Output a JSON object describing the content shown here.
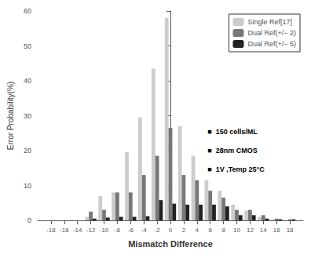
{
  "chart_data": {
    "type": "bar",
    "x": [
      -18,
      -16,
      -14,
      -12,
      -10,
      -8,
      -6,
      -4,
      -2,
      0,
      2,
      4,
      6,
      8,
      10,
      12,
      14,
      16,
      18
    ],
    "series": [
      {
        "name": "Single Ref[17]",
        "color": "#cccccc",
        "values": [
          0,
          0,
          0,
          1.0,
          7.0,
          8.0,
          19.5,
          29.5,
          43.5,
          58.0,
          27.0,
          18.5,
          11.5,
          8.5,
          4.5,
          2.8,
          1.0,
          0.3,
          0
        ]
      },
      {
        "name": "Dual Ref(+/− 2)",
        "color": "#777777",
        "values": [
          0,
          0,
          0,
          2.5,
          3.0,
          8.0,
          8.0,
          13.0,
          18.5,
          26.5,
          13.0,
          11.5,
          8.5,
          6.5,
          3.0,
          3.0,
          1.5,
          0.5,
          0.3
        ]
      },
      {
        "name": "Dual Ref(+/− 5)",
        "color": "#222222",
        "values": [
          0,
          0,
          0,
          0.5,
          0.8,
          1.0,
          1.0,
          1.2,
          5.8,
          4.8,
          4.5,
          4.5,
          4.5,
          4.0,
          1.5,
          1.5,
          0.5,
          0.3,
          0.3
        ]
      }
    ],
    "xlabel": "Mismatch Difference",
    "ylabel": "Error Probability(%)",
    "xlim": [
      -20,
      20
    ],
    "xticks": [
      -18,
      -16,
      -14,
      -12,
      -10,
      -8,
      -6,
      -4,
      -2,
      0,
      2,
      4,
      6,
      8,
      10,
      12,
      14,
      16,
      18
    ],
    "ylim": [
      0,
      60
    ],
    "yticks": [
      0,
      10,
      20,
      30,
      40,
      50,
      60
    ],
    "legend": "upper right",
    "grid": false,
    "annotations": [
      "■  150 cells/ML",
      "■  28nm CMOS",
      "■  1V ,Temp 25°C"
    ]
  }
}
